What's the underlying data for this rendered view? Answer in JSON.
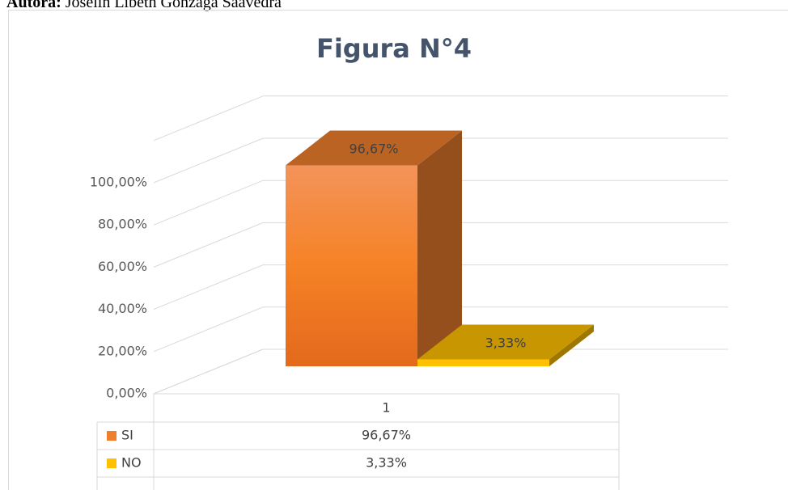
{
  "header": {
    "label": "Autora:",
    "author": "Joselin Libeth Gonzaga Saavedra"
  },
  "chart_data": {
    "type": "bar3d",
    "title": "Figura N°4",
    "categories": [
      "1"
    ],
    "series": [
      {
        "name": "SI",
        "color": "#f07f2d",
        "values": [
          96.67
        ],
        "value_labels": [
          "96,67%"
        ]
      },
      {
        "name": "NO",
        "color": "#ffc000",
        "values": [
          3.33
        ],
        "value_labels": [
          "3,33%"
        ]
      }
    ],
    "ylim": [
      0,
      120
    ],
    "yticks": [
      {
        "value": 0,
        "label": "0,00%"
      },
      {
        "value": 20,
        "label": "20,00%"
      },
      {
        "value": 40,
        "label": "40,00%"
      },
      {
        "value": 60,
        "label": "60,00%"
      },
      {
        "value": 80,
        "label": "80,00%"
      },
      {
        "value": 100,
        "label": "100,00%"
      }
    ],
    "grid": true,
    "data_table": true
  }
}
